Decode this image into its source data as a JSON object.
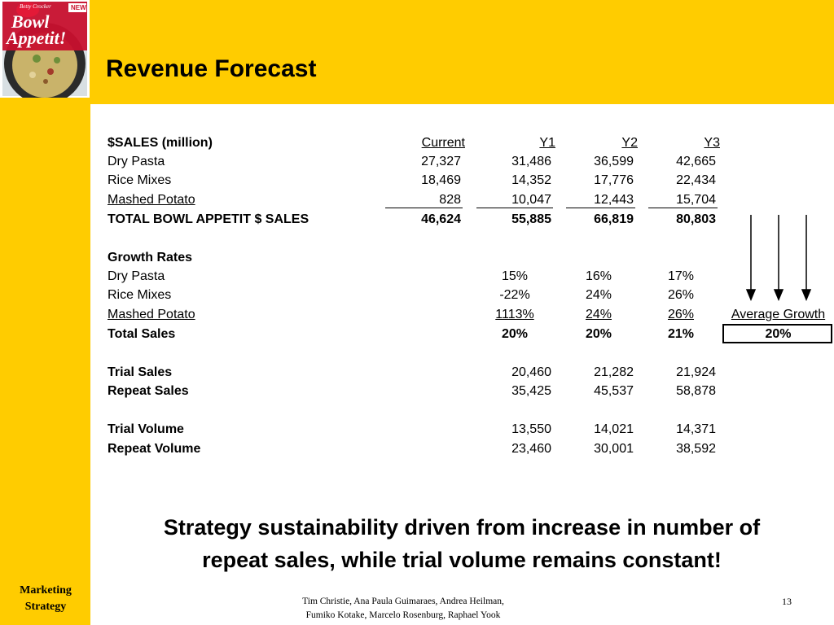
{
  "slide": {
    "title": "Revenue Forecast",
    "logo": {
      "brand": "Betty Crocker",
      "name_line1": "Bowl",
      "name_line2": "Appetit!",
      "badge": "NEW"
    }
  },
  "table": {
    "header_label": "$SALES (million)",
    "columns": [
      "Current",
      "Y1",
      "Y2",
      "Y3"
    ],
    "sales_rows": [
      {
        "label": "Dry Pasta",
        "values": [
          "27,327",
          "31,486",
          "36,599",
          "42,665"
        ]
      },
      {
        "label": "Rice Mixes",
        "values": [
          "18,469",
          "14,352",
          "17,776",
          "22,434"
        ]
      },
      {
        "label": "Mashed Potato",
        "values": [
          "828",
          "10,047",
          "12,443",
          "15,704"
        ]
      }
    ],
    "total_row": {
      "label": "TOTAL BOWL APPETIT $ SALES",
      "values": [
        "46,624",
        "55,885",
        "66,819",
        "80,803"
      ]
    },
    "growth_label": "Growth Rates",
    "growth_rows": [
      {
        "label": "Dry Pasta",
        "values": [
          "15%",
          "16%",
          "17%"
        ]
      },
      {
        "label": "Rice Mixes",
        "values": [
          "-22%",
          "24%",
          "26%"
        ]
      },
      {
        "label": "Mashed Potato",
        "values": [
          "1113%",
          "24%",
          "26%"
        ]
      }
    ],
    "growth_total": {
      "label": "Total Sales",
      "values": [
        "20%",
        "20%",
        "21%"
      ]
    },
    "average_growth": {
      "label": "Average Growth",
      "value": "20%"
    },
    "trial_sales": {
      "label": "Trial Sales",
      "values": [
        "20,460",
        "21,282",
        "21,924"
      ]
    },
    "repeat_sales": {
      "label": "Repeat Sales",
      "values": [
        "35,425",
        "45,537",
        "58,878"
      ]
    },
    "trial_volume": {
      "label": "Trial Volume",
      "values": [
        "13,550",
        "14,021",
        "14,371"
      ]
    },
    "repeat_volume": {
      "label": "Repeat Volume",
      "values": [
        "23,460",
        "30,001",
        "38,592"
      ]
    }
  },
  "strategy": {
    "line1": "Strategy sustainability driven from increase in number of",
    "line2": "repeat sales, while trial volume remains constant!"
  },
  "footer": {
    "nav_line1": "Marketing",
    "nav_line2": "Strategy",
    "credits_line1": "Tim Christie, Ana Paula Guimaraes, Andrea Heilman,",
    "credits_line2": "Fumiko Kotake, Marcelo Rosenburg, Raphael Yook",
    "page_number": "13"
  }
}
